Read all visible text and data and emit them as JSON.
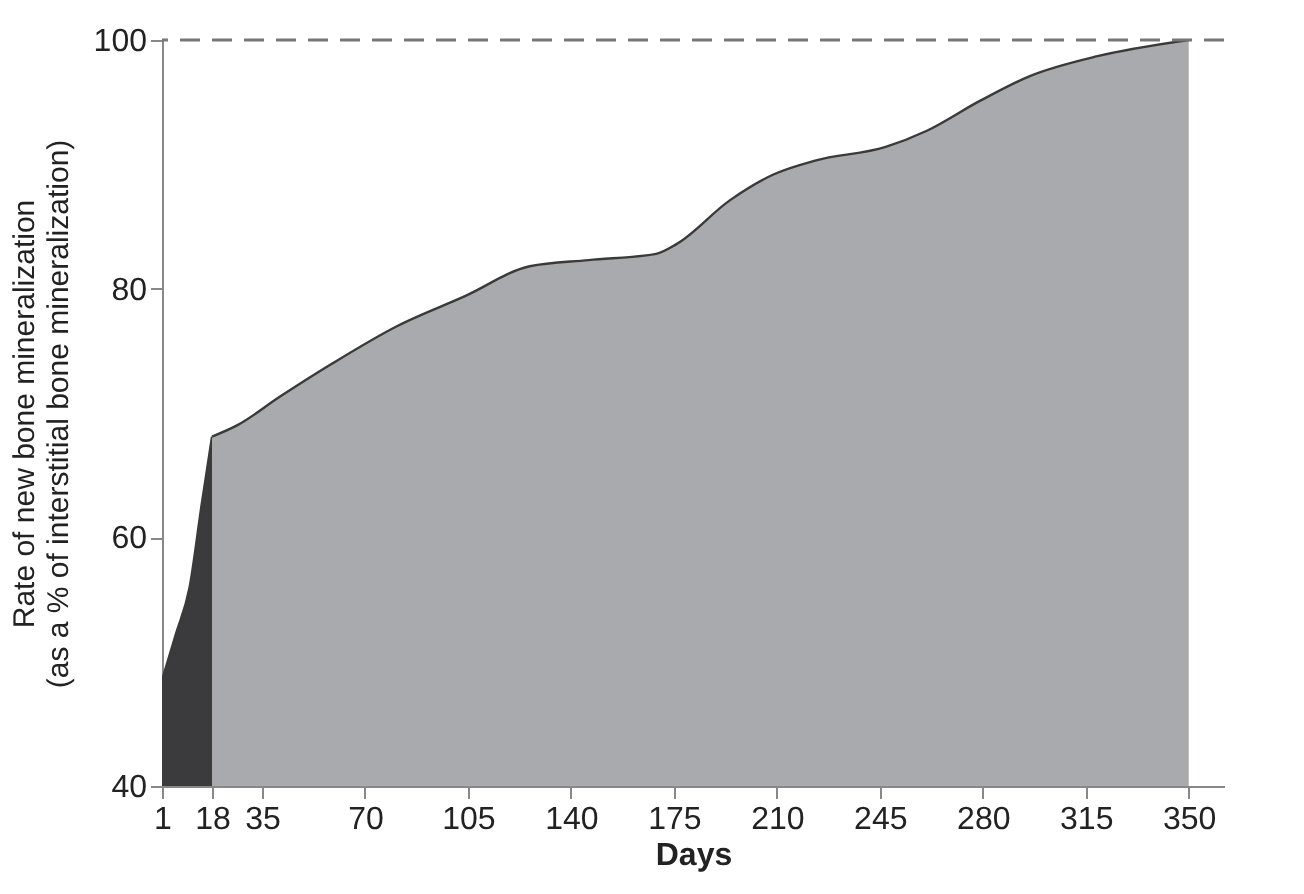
{
  "chart_data": {
    "type": "area",
    "xlabel": "Days",
    "ylabel": "Rate of new bone mineralization\n(as a % of interstitial bone mineralization)",
    "xlim": [
      1,
      362
    ],
    "xticks": [
      1,
      18,
      35,
      70,
      105,
      140,
      175,
      210,
      245,
      280,
      315,
      350
    ],
    "ylim": [
      40,
      100
    ],
    "yticks": [
      40,
      60,
      80,
      100
    ],
    "grid": false,
    "series": [
      {
        "color": "#3b3b3d",
        "x": [
          1,
          5.7,
          10.4,
          14.4,
          18
        ],
        "values": [
          48.5,
          52.2,
          56,
          62.5,
          68.1
        ]
      },
      {
        "color": "#a9aaad",
        "x": [
          18,
          26.5,
          41,
          59,
          81,
          104,
          126,
          146,
          169,
          176,
          194,
          209,
          223,
          247,
          261,
          279,
          296,
          319,
          350
        ],
        "values": [
          68.1,
          69,
          71.3,
          74,
          77,
          79.4,
          81.8,
          82.3,
          82.8,
          83.6,
          87.1,
          89.2,
          90.3,
          91.4,
          92.7,
          95.1,
          97.1,
          98.7,
          100
        ]
      }
    ],
    "ref_lines": [
      {
        "axis": "y",
        "value": 100,
        "line_style": "dashed",
        "color": "#777777"
      }
    ]
  }
}
